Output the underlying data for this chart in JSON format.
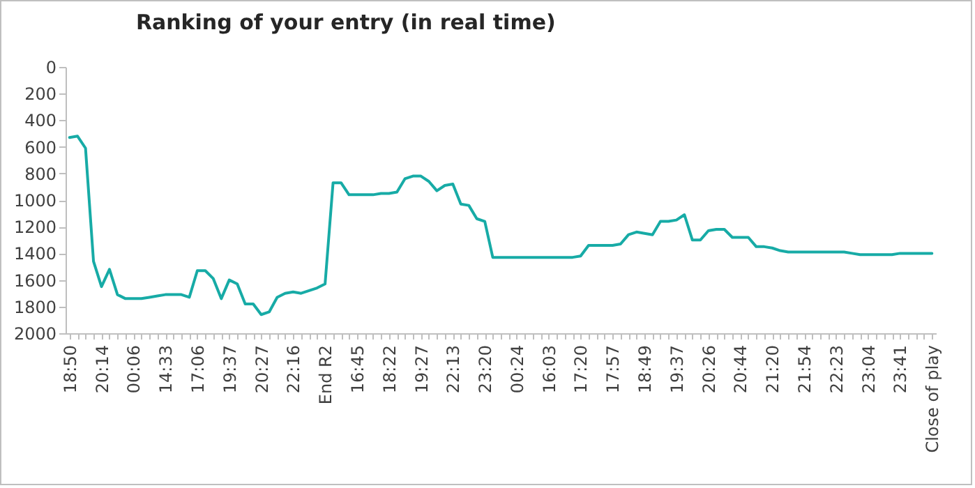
{
  "chart_data": {
    "type": "line",
    "title": "Ranking of your entry (in real time)",
    "categories": [
      "18:50",
      null,
      null,
      null,
      "20:14",
      null,
      null,
      null,
      "00:06",
      null,
      null,
      null,
      "14:33",
      null,
      null,
      null,
      "17:06",
      null,
      null,
      null,
      "19:37",
      null,
      null,
      null,
      "20:27",
      null,
      null,
      null,
      "22:16",
      null,
      null,
      null,
      "End R2",
      null,
      null,
      null,
      "16:45",
      null,
      null,
      null,
      "18:22",
      null,
      null,
      null,
      "19:27",
      null,
      null,
      null,
      "22:13",
      null,
      null,
      null,
      "23:20",
      null,
      null,
      null,
      "00:24",
      null,
      null,
      null,
      "16:03",
      null,
      null,
      null,
      "17:20",
      null,
      null,
      null,
      "17:57",
      null,
      null,
      null,
      "18:49",
      null,
      null,
      null,
      "19:37",
      null,
      null,
      null,
      "20:26",
      null,
      null,
      null,
      "20:44",
      null,
      null,
      null,
      "21:20",
      null,
      null,
      null,
      "21:54",
      null,
      null,
      null,
      "22:23",
      null,
      null,
      null,
      "23:04",
      null,
      null,
      null,
      "23:41",
      null,
      null,
      null,
      "Close of play"
    ],
    "series": [
      {
        "color": "#17aba6",
        "values": [
          530,
          520,
          610,
          1460,
          1650,
          1520,
          1710,
          1740,
          1740,
          1740,
          1730,
          1720,
          1710,
          1710,
          1710,
          1730,
          1530,
          1530,
          1590,
          1740,
          1600,
          1630,
          1780,
          1780,
          1860,
          1840,
          1730,
          1700,
          1690,
          1700,
          1680,
          1660,
          1630,
          870,
          870,
          960,
          960,
          960,
          960,
          950,
          950,
          940,
          840,
          820,
          820,
          860,
          930,
          890,
          880,
          1030,
          1040,
          1140,
          1160,
          1430,
          1430,
          1430,
          1430,
          1430,
          1430,
          1430,
          1430,
          1430,
          1430,
          1430,
          1420,
          1340,
          1340,
          1340,
          1340,
          1330,
          1260,
          1240,
          1250,
          1260,
          1160,
          1160,
          1150,
          1110,
          1300,
          1300,
          1230,
          1220,
          1220,
          1280,
          1280,
          1280,
          1350,
          1350,
          1360,
          1380,
          1390,
          1390,
          1390,
          1390,
          1390,
          1390,
          1390,
          1390,
          1400,
          1410,
          1410,
          1410,
          1410,
          1410,
          1400,
          1400,
          1400,
          1400,
          1400
        ]
      }
    ],
    "ylim": [
      2000,
      0
    ],
    "yticks": [
      0,
      200,
      400,
      600,
      800,
      1000,
      1200,
      1400,
      1600,
      1800,
      2000
    ],
    "grid": false,
    "legend": false,
    "marker": "none",
    "line_style": "solid"
  }
}
